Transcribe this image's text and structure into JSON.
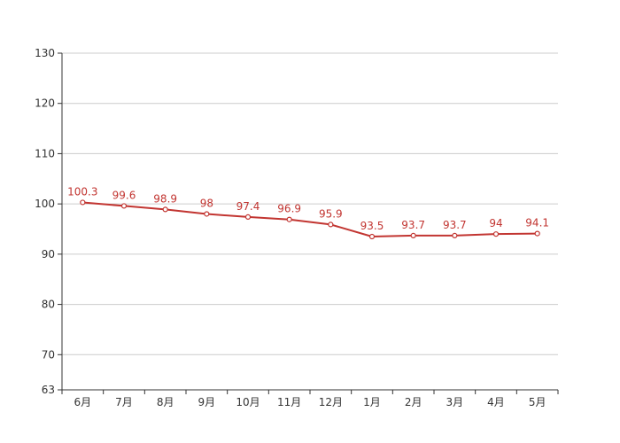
{
  "chart_data": {
    "type": "line",
    "title": "",
    "xlabel": "",
    "ylabel": "",
    "categories": [
      "6月",
      "7月",
      "8月",
      "9月",
      "10月",
      "11月",
      "12月",
      "1月",
      "2月",
      "3月",
      "4月",
      "5月"
    ],
    "series": [
      {
        "values": [
          100.3,
          99.6,
          98.9,
          98,
          97.4,
          96.9,
          95.9,
          93.5,
          93.7,
          93.7,
          94,
          94.1
        ],
        "labels": [
          "100.3",
          "99.6",
          "98.9",
          "98",
          "97.4",
          "96.9",
          "95.9",
          "93.5",
          "93.7",
          "93.7",
          "94",
          "94.1"
        ],
        "color": "#c23531"
      }
    ],
    "ylim": [
      63,
      130
    ],
    "yticks": [
      "63",
      "70",
      "80",
      "90",
      "100",
      "110",
      "120",
      "130"
    ],
    "grid": true,
    "legend": "none"
  },
  "colors": {
    "line": "#c23531",
    "grid": "#cccccc",
    "axis": "#333333"
  }
}
